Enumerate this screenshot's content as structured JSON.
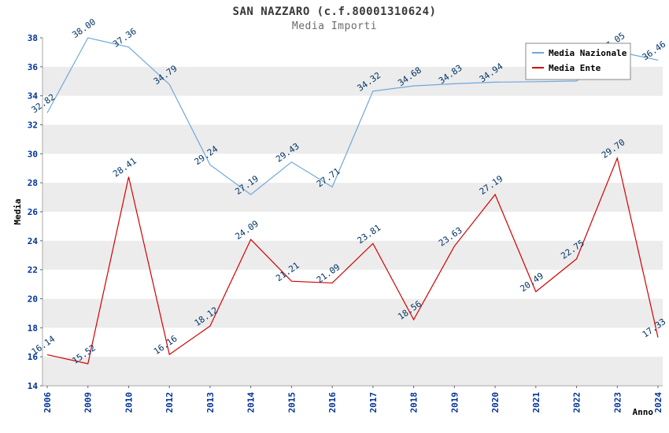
{
  "chart_data": {
    "type": "line",
    "title": "SAN NAZZARO (c.f.80001310624)",
    "subtitle": "Media Importi",
    "xlabel": "Anno",
    "ylabel": "Media",
    "ylim": [
      14,
      38
    ],
    "ytick_step": 2,
    "grid": "alternating-horizontal-bands",
    "legend_position": "top-right",
    "categories": [
      "2006",
      "2009",
      "2010",
      "2012",
      "2013",
      "2014",
      "2015",
      "2016",
      "2017",
      "2018",
      "2019",
      "2020",
      "2021",
      "2022",
      "2023",
      "2024"
    ],
    "series": [
      {
        "name": "Media Nazionale",
        "color": "#6fa8dc",
        "values": [
          32.82,
          38.0,
          37.36,
          34.79,
          29.24,
          27.19,
          29.43,
          27.71,
          34.32,
          34.68,
          34.83,
          34.94,
          34.97,
          35.02,
          37.05,
          36.46
        ],
        "labels_hidden_by_legend": [
          12,
          13
        ]
      },
      {
        "name": "Media Ente",
        "color": "#d40000",
        "values": [
          16.14,
          15.52,
          28.41,
          16.16,
          18.12,
          24.09,
          21.21,
          21.09,
          23.81,
          18.56,
          23.63,
          27.19,
          20.49,
          22.75,
          29.7,
          17.33
        ],
        "labels_hidden_by_legend": []
      }
    ],
    "colors": {
      "band": "#ececec",
      "plot_background": "#ffffff",
      "tick_label": "#003399",
      "data_label": "#003366",
      "axis_title": "#000000",
      "axis_line": "#aaaaaa",
      "legend_border": "#888888",
      "legend_text": "#000000"
    }
  }
}
